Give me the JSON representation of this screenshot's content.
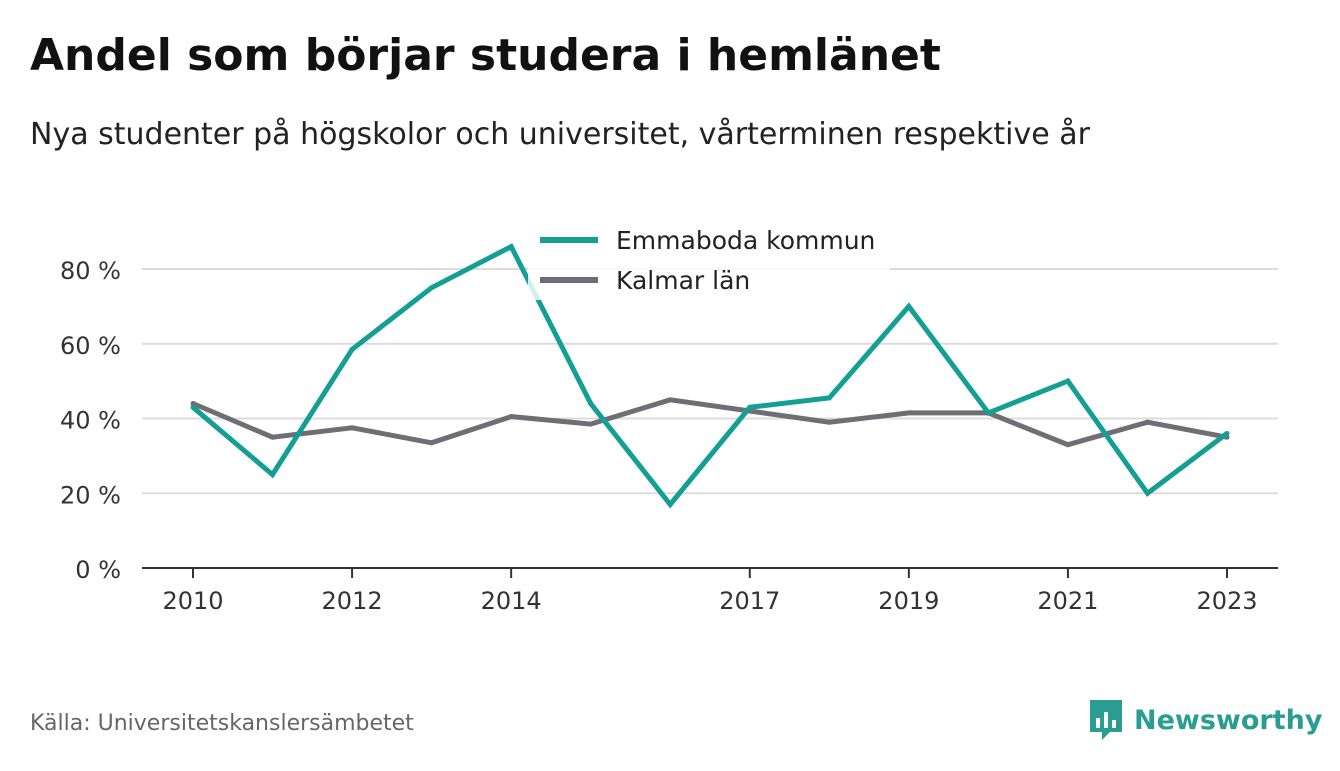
{
  "header": {
    "title": "Andel som börjar studera i hemlänet",
    "subtitle": "Nya studenter på högskolor och universitet, vårterminen respektive år"
  },
  "footer": {
    "source": "Källa: Universitetskanslersämbetet",
    "brand": "Newsworthy",
    "brand_color": "#2a9d92"
  },
  "chart_data": {
    "type": "line",
    "x": [
      2010,
      2011,
      2012,
      2013,
      2014,
      2015,
      2016,
      2017,
      2018,
      2019,
      2020,
      2021,
      2022,
      2023
    ],
    "xticks": [
      2010,
      2012,
      2014,
      2017,
      2019,
      2021,
      2023
    ],
    "xtick_labels": [
      "2010",
      "2012",
      "2014",
      "2017",
      "2019",
      "2021",
      "2023"
    ],
    "yticks": [
      0,
      20,
      40,
      60,
      80
    ],
    "ytick_labels": [
      "0 %",
      "20 %",
      "40 %",
      "60 %",
      "80 %"
    ],
    "ylim": [
      0,
      88
    ],
    "grid": true,
    "legend_position": "top-center",
    "series": [
      {
        "name": "Emmaboda kommun",
        "color": "#139f94",
        "values": [
          43,
          25,
          58.5,
          75,
          86,
          44,
          17,
          43,
          45.5,
          70,
          41.5,
          50,
          20,
          36
        ]
      },
      {
        "name": "Kalmar län",
        "color": "#706e75",
        "values": [
          44,
          35,
          37.5,
          33.5,
          40.5,
          38.5,
          45,
          42,
          39,
          41.5,
          41.5,
          33,
          39,
          35
        ]
      }
    ]
  }
}
